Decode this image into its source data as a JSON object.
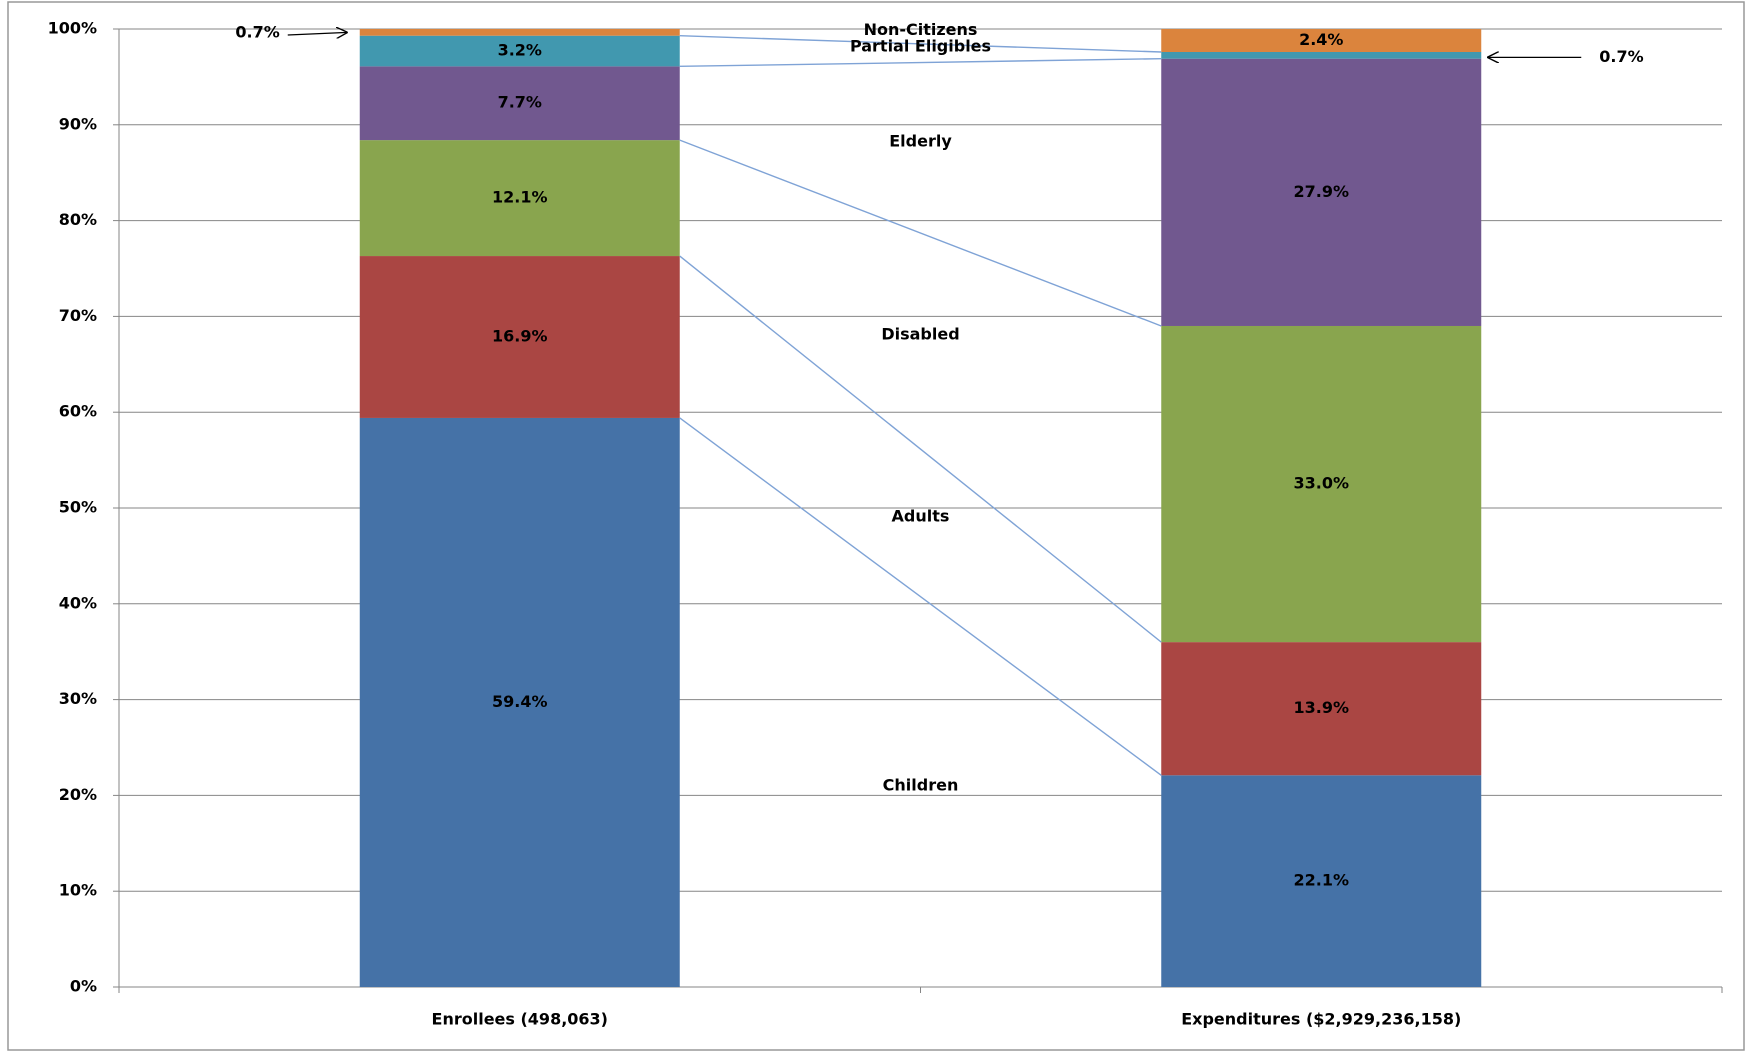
{
  "chart_data": {
    "type": "stacked_bar_100",
    "categories": [
      "Enrollees (498,063)",
      "Expenditures ($2,929,236,158)"
    ],
    "series": [
      {
        "name": "Children",
        "color": "#4572a7",
        "values": [
          59.4,
          22.1
        ],
        "value_labels": [
          "59.4%",
          "22.1%"
        ]
      },
      {
        "name": "Adults",
        "color": "#aa4643",
        "values": [
          16.9,
          13.9
        ],
        "value_labels": [
          "16.9%",
          "13.9%"
        ]
      },
      {
        "name": "Disabled",
        "color": "#89a54e",
        "values": [
          12.1,
          33.0
        ],
        "value_labels": [
          "12.1%",
          "33.0%"
        ]
      },
      {
        "name": "Elderly",
        "color": "#71588f",
        "values": [
          7.7,
          27.9
        ],
        "value_labels": [
          "7.7%",
          "27.9%"
        ]
      },
      {
        "name": "Partial Eligibles",
        "color": "#4198af",
        "values": [
          3.2,
          0.7
        ],
        "value_labels": [
          "3.2%",
          "0.7%"
        ]
      },
      {
        "name": "Non-Citizens",
        "color": "#db843d",
        "values": [
          0.7,
          2.4
        ],
        "value_labels": [
          "0.7%",
          "2.4%"
        ]
      }
    ],
    "ylim": [
      0,
      100
    ],
    "yticks": [
      {
        "value": 0,
        "label": "0%"
      },
      {
        "value": 10,
        "label": "10%"
      },
      {
        "value": 20,
        "label": "20%"
      },
      {
        "value": 30,
        "label": "30%"
      },
      {
        "value": 40,
        "label": "40%"
      },
      {
        "value": 50,
        "label": "50%"
      },
      {
        "value": 60,
        "label": "60%"
      },
      {
        "value": 70,
        "label": "70%"
      },
      {
        "value": 80,
        "label": "80%"
      },
      {
        "value": 90,
        "label": "90%"
      },
      {
        "value": 100,
        "label": "100%"
      }
    ],
    "grid": true
  }
}
